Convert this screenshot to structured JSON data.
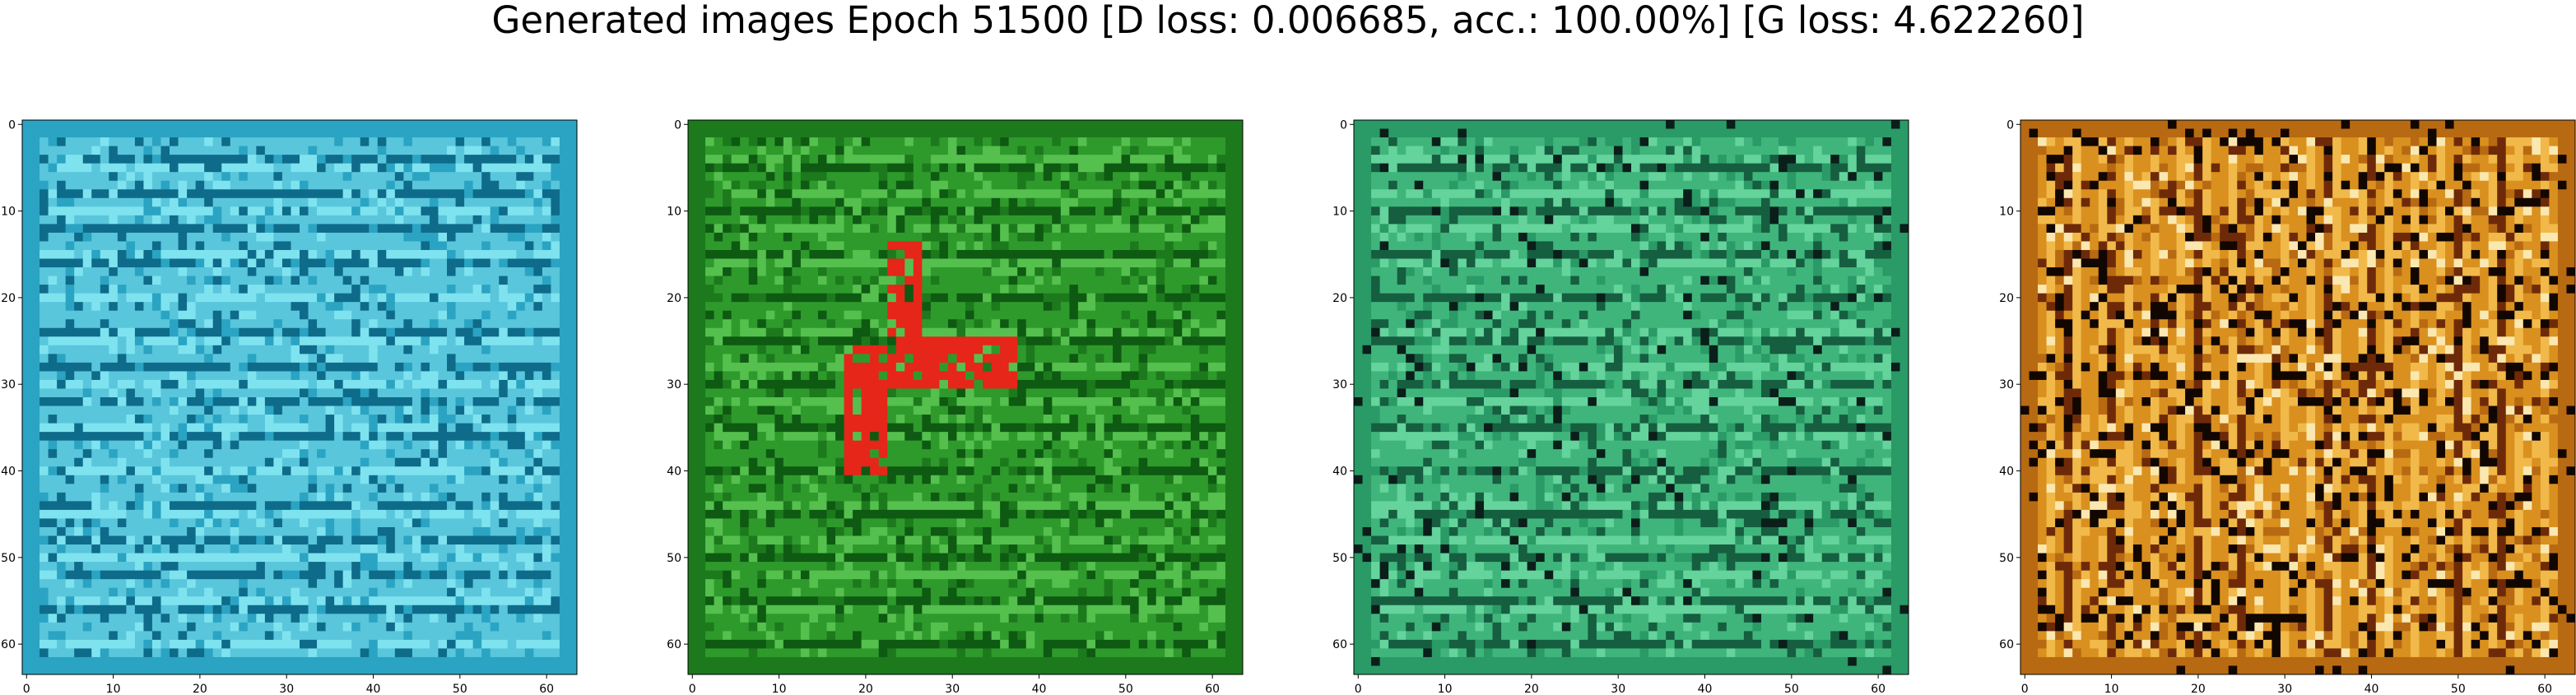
{
  "figure": {
    "title": "Generated images Epoch 51500 [D loss: 0.006685, acc.: 100.00%] [G loss: 4.622260]"
  },
  "panels": [
    {
      "name": "panel-1",
      "palette": [
        "#59c6dc",
        "#2aa4c2",
        "#0e6b8a",
        "#7fe3ef",
        "#0a3552"
      ],
      "xticks": [
        "0",
        "10",
        "20",
        "30",
        "40",
        "50",
        "60"
      ],
      "yticks": [
        "0",
        "10",
        "20",
        "30",
        "40",
        "50",
        "60"
      ]
    },
    {
      "name": "panel-2",
      "palette": [
        "#2f9a2c",
        "#1c7a1d",
        "#55c04e",
        "#0e5a12",
        "#b7ecb0",
        "#e52619"
      ],
      "xticks": [
        "0",
        "10",
        "20",
        "30",
        "40",
        "50",
        "60"
      ],
      "yticks": [
        "0",
        "10",
        "20",
        "30",
        "40",
        "50",
        "60"
      ]
    },
    {
      "name": "panel-3",
      "palette": [
        "#3fb57c",
        "#2a9a66",
        "#64d39c",
        "#165e40",
        "#d8f3e6",
        "#0a1e1a"
      ],
      "xticks": [
        "0",
        "10",
        "20",
        "30",
        "40",
        "50",
        "60"
      ],
      "yticks": [
        "0",
        "10",
        "20",
        "30",
        "40",
        "50",
        "60"
      ]
    },
    {
      "name": "panel-4",
      "palette": [
        "#d9901f",
        "#b86a12",
        "#f1b94a",
        "#6e2a08",
        "#fbe8b0",
        "#120600"
      ],
      "xticks": [
        "0",
        "10",
        "20",
        "30",
        "40",
        "50",
        "60"
      ],
      "yticks": [
        "0",
        "10",
        "20",
        "30",
        "40",
        "50",
        "60"
      ]
    }
  ]
}
